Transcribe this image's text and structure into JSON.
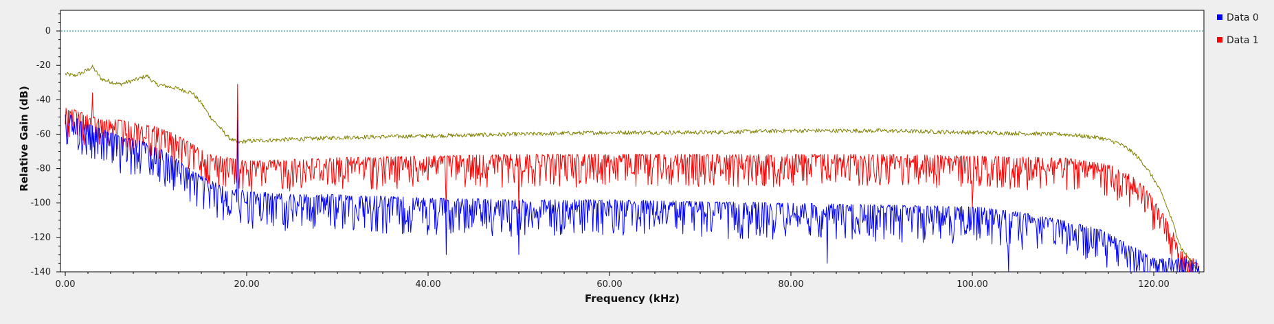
{
  "chart_data": {
    "type": "line",
    "title": "",
    "xlabel": "Frequency (kHz)",
    "ylabel": "Relative Gain (dB)",
    "xlim": [
      0,
      125
    ],
    "ylim": [
      -140,
      12
    ],
    "x_ticks": [
      0,
      20,
      40,
      60,
      80,
      100,
      120
    ],
    "x_tick_labels": [
      "0.00",
      "20.00",
      "40.00",
      "60.00",
      "80.00",
      "100.00",
      "120.00"
    ],
    "y_ticks": [
      0,
      -20,
      -40,
      -60,
      -80,
      -100,
      -120,
      -140
    ],
    "y_tick_labels": [
      "0",
      "-20",
      "-40",
      "-60",
      "-80",
      "-100",
      "-120",
      "-140"
    ],
    "reference_line": {
      "y": 0,
      "color": "#008080",
      "style": "dotted"
    },
    "grid": false,
    "legend_position": "right",
    "legend": [
      {
        "label": "Data 0",
        "color": "#0000ff"
      },
      {
        "label": "Data 1",
        "color": "#ff0000"
      }
    ],
    "series": [
      {
        "name": "Data 0",
        "color": "#0000ff",
        "points": [
          [
            0,
            -52
          ],
          [
            2,
            -58
          ],
          [
            4,
            -62
          ],
          [
            6,
            -66
          ],
          [
            8,
            -68
          ],
          [
            10,
            -72
          ],
          [
            12,
            -78
          ],
          [
            14,
            -86
          ],
          [
            16,
            -92
          ],
          [
            18,
            -96
          ],
          [
            20,
            -98
          ],
          [
            25,
            -100
          ],
          [
            30,
            -100
          ],
          [
            40,
            -102
          ],
          [
            50,
            -103
          ],
          [
            60,
            -103
          ],
          [
            70,
            -104
          ],
          [
            80,
            -105
          ],
          [
            90,
            -106
          ],
          [
            100,
            -107
          ],
          [
            105,
            -110
          ],
          [
            110,
            -115
          ],
          [
            114,
            -120
          ],
          [
            117,
            -128
          ],
          [
            120,
            -137
          ]
        ],
        "spikes": [
          [
            19,
            -52
          ],
          [
            42,
            -130
          ],
          [
            50,
            -130
          ],
          [
            84,
            -135
          ],
          [
            104,
            -140
          ]
        ]
      },
      {
        "name": "Data 1",
        "color": "#ff0000",
        "points": [
          [
            0,
            -48
          ],
          [
            2,
            -52
          ],
          [
            4,
            -56
          ],
          [
            6,
            -56
          ],
          [
            8,
            -58
          ],
          [
            10,
            -60
          ],
          [
            12,
            -64
          ],
          [
            14,
            -70
          ],
          [
            16,
            -76
          ],
          [
            18,
            -78
          ],
          [
            20,
            -80
          ],
          [
            30,
            -78
          ],
          [
            40,
            -77
          ],
          [
            50,
            -76
          ],
          [
            60,
            -76
          ],
          [
            70,
            -76
          ],
          [
            80,
            -76
          ],
          [
            90,
            -76
          ],
          [
            100,
            -77
          ],
          [
            110,
            -78
          ],
          [
            115,
            -82
          ],
          [
            117,
            -86
          ],
          [
            119,
            -95
          ],
          [
            121,
            -110
          ],
          [
            123,
            -130
          ],
          [
            125,
            -140
          ]
        ],
        "spikes": [
          [
            3,
            -36
          ],
          [
            19,
            -31
          ],
          [
            42,
            -105
          ],
          [
            50,
            -106
          ],
          [
            100,
            -103
          ]
        ]
      },
      {
        "color": "#808000",
        "points": [
          [
            0,
            -25
          ],
          [
            1,
            -26
          ],
          [
            2,
            -24
          ],
          [
            3,
            -21
          ],
          [
            4,
            -28
          ],
          [
            6,
            -31
          ],
          [
            8,
            -28
          ],
          [
            9,
            -26
          ],
          [
            10,
            -31
          ],
          [
            12,
            -33
          ],
          [
            14,
            -36
          ],
          [
            15,
            -42
          ],
          [
            16,
            -50
          ],
          [
            17,
            -56
          ],
          [
            18,
            -62
          ],
          [
            19,
            -65
          ],
          [
            20,
            -64
          ],
          [
            30,
            -62
          ],
          [
            40,
            -61
          ],
          [
            50,
            -60
          ],
          [
            60,
            -59
          ],
          [
            70,
            -59
          ],
          [
            80,
            -58
          ],
          [
            90,
            -58
          ],
          [
            100,
            -59
          ],
          [
            110,
            -60
          ],
          [
            114,
            -62
          ],
          [
            116,
            -65
          ],
          [
            117,
            -68
          ],
          [
            118,
            -72
          ],
          [
            119,
            -78
          ],
          [
            120,
            -86
          ],
          [
            121,
            -96
          ],
          [
            122,
            -110
          ],
          [
            123,
            -126
          ],
          [
            124,
            -133
          ],
          [
            125,
            -140
          ]
        ],
        "spikes": []
      }
    ]
  }
}
